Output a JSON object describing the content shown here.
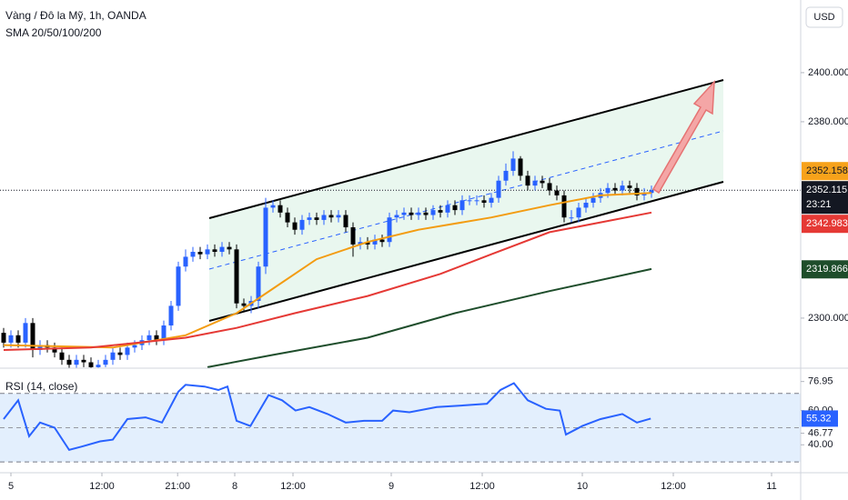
{
  "header": {
    "title": "Vàng / Đô la Mỹ, 1h, OANDA",
    "indicator": "SMA 20/50/100/200",
    "currency": "USD"
  },
  "chart_data": [
    {
      "type": "candlestick",
      "xlim": [
        -0.5,
        109.5
      ],
      "ylim": [
        2279.6,
        2429.6
      ],
      "yticks": [
        {
          "value": 2400,
          "label": "2400.000"
        },
        {
          "value": 2380,
          "label": "2380.000"
        },
        {
          "value": 2300,
          "label": "2300.000"
        }
      ],
      "xticks": [
        {
          "value": 1,
          "label": "5"
        },
        {
          "value": 13.5,
          "label": "12:00"
        },
        {
          "value": 23.9,
          "label": "21:00"
        },
        {
          "value": 31.75,
          "label": "8"
        },
        {
          "value": 39.75,
          "label": "12:00"
        },
        {
          "value": 53.25,
          "label": "9"
        },
        {
          "value": 65.75,
          "label": "12:00"
        },
        {
          "value": 79.5,
          "label": "10"
        },
        {
          "value": 92,
          "label": "12:00"
        },
        {
          "value": 105.5,
          "label": "11"
        }
      ],
      "up_color": "#2962ff",
      "down_color": "#000000",
      "open": [
        2294,
        2290,
        2293,
        2290,
        2298,
        2287,
        2289,
        2288,
        2286,
        2283,
        2281,
        2283,
        2282,
        2280,
        2281,
        2283,
        2286,
        2285,
        2288,
        2289,
        2291,
        2293,
        2291,
        2297,
        2305,
        2321,
        2325,
        2327,
        2326,
        2328,
        2327,
        2329,
        2328,
        2306,
        2305,
        2307,
        2321,
        2345,
        2346,
        2343,
        2339,
        2336,
        2340,
        2341,
        2340,
        2342,
        2341,
        2342,
        2337,
        2330,
        2331,
        2330,
        2332,
        2331,
        2341,
        2342,
        2343,
        2342,
        2343,
        2342,
        2344,
        2343,
        2346,
        2344,
        2348,
        2348,
        2348,
        2347,
        2349,
        2356,
        2360,
        2365,
        2358,
        2354,
        2356,
        2355,
        2352,
        2350,
        2341,
        2341,
        2345,
        2347,
        2349,
        2351,
        2353,
        2352,
        2354,
        2353,
        2350,
        2351
      ],
      "high": [
        2296,
        2295,
        2295,
        2300,
        2300,
        2291,
        2291,
        2290,
        2288,
        2285,
        2285,
        2285,
        2284,
        2283,
        2285,
        2288,
        2288,
        2290,
        2291,
        2293,
        2295,
        2295,
        2299,
        2307,
        2323,
        2328,
        2329,
        2329,
        2330,
        2330,
        2331,
        2331,
        2330,
        2308,
        2309,
        2323,
        2349,
        2348,
        2348,
        2345,
        2341,
        2342,
        2343,
        2343,
        2344,
        2344,
        2344,
        2344,
        2339,
        2333,
        2333,
        2334,
        2334,
        2343,
        2344,
        2345,
        2345,
        2345,
        2345,
        2346,
        2346,
        2348,
        2348,
        2350,
        2350,
        2350,
        2350,
        2351,
        2358,
        2363,
        2368,
        2366,
        2360,
        2358,
        2358,
        2357,
        2354,
        2352,
        2344,
        2347,
        2349,
        2351,
        2353,
        2355,
        2355,
        2356,
        2356,
        2355,
        2353,
        2354
      ],
      "low": [
        2288,
        2288,
        2288,
        2288,
        2284,
        2285,
        2286,
        2284,
        2281,
        2279,
        2279,
        2280,
        2278,
        2279,
        2280,
        2281,
        2283,
        2283,
        2286,
        2287,
        2289,
        2289,
        2289,
        2295,
        2303,
        2319,
        2323,
        2324,
        2324,
        2325,
        2325,
        2326,
        2304,
        2303,
        2302,
        2304,
        2318,
        2343,
        2341,
        2337,
        2334,
        2334,
        2338,
        2338,
        2338,
        2339,
        2339,
        2335,
        2325,
        2328,
        2328,
        2328,
        2329,
        2329,
        2339,
        2340,
        2340,
        2340,
        2340,
        2340,
        2341,
        2341,
        2342,
        2342,
        2346,
        2346,
        2345,
        2345,
        2347,
        2354,
        2358,
        2356,
        2352,
        2352,
        2353,
        2350,
        2348,
        2339,
        2339,
        2339,
        2343,
        2345,
        2347,
        2349,
        2350,
        2350,
        2351,
        2348,
        2348,
        2349
      ],
      "close": [
        2290,
        2293,
        2290,
        2298,
        2287,
        2289,
        2288,
        2286,
        2283,
        2281,
        2283,
        2282,
        2280,
        2281,
        2283,
        2286,
        2285,
        2288,
        2289,
        2291,
        2293,
        2291,
        2297,
        2305,
        2321,
        2325,
        2327,
        2326,
        2328,
        2327,
        2329,
        2328,
        2306,
        2305,
        2307,
        2321,
        2345,
        2346,
        2343,
        2339,
        2336,
        2340,
        2341,
        2340,
        2342,
        2341,
        2342,
        2337,
        2330,
        2331,
        2330,
        2332,
        2331,
        2341,
        2342,
        2343,
        2342,
        2343,
        2342,
        2344,
        2343,
        2346,
        2344,
        2348,
        2348,
        2348,
        2347,
        2349,
        2356,
        2360,
        2365,
        2358,
        2354,
        2356,
        2355,
        2352,
        2350,
        2341,
        2341,
        2345,
        2347,
        2349,
        2351,
        2353,
        2352,
        2354,
        2353,
        2350,
        2351,
        2352.115
      ],
      "series": [
        {
          "color": "#f39c12",
          "x": [
            0,
            15,
            25,
            32,
            37,
            43,
            50,
            57,
            67,
            75,
            82,
            89
          ],
          "values": [
            2289,
            2288,
            2293,
            2302,
            2312,
            2324,
            2331,
            2336,
            2341,
            2346,
            2350,
            2351
          ]
        },
        {
          "color": "#e53935",
          "x": [
            0,
            12,
            25,
            32,
            40,
            50,
            60,
            67,
            75,
            82,
            89
          ],
          "values": [
            2287,
            2288,
            2292,
            2296,
            2302,
            2309,
            2318,
            2326,
            2335,
            2339,
            2343
          ]
        },
        {
          "color": "#1e4d2b",
          "x": [
            28,
            37,
            50,
            62,
            75,
            89
          ],
          "values": [
            2280,
            2285,
            2292,
            2302,
            2311,
            2320
          ]
        }
      ],
      "price_badges": [
        {
          "value": 2352.158,
          "color": "#f7a21b"
        },
        {
          "value": 2342.983,
          "color": "#e53935"
        },
        {
          "value": 2319.866,
          "color": "#1e4d2b"
        }
      ],
      "countdown": "23:21"
    },
    {
      "type": "line",
      "title": "RSI (14, close)",
      "xlim": [
        -0.5,
        109.5
      ],
      "ylim": [
        23.7,
        84.2
      ],
      "yticks": [
        76.95,
        {
          "value": 60,
          "label": "60.00"
        },
        46.77,
        {
          "value": 40,
          "label": "40.00"
        }
      ],
      "bands": [
        70,
        30
      ],
      "midline": 50,
      "series": [
        {
          "color": "#2962ff",
          "x": [
            0,
            2,
            3.5,
            5,
            7,
            9,
            10.75,
            13.25,
            15,
            17,
            19.5,
            21.75,
            24,
            25,
            27.6,
            29.5,
            30.75,
            32,
            33.9,
            36.4,
            38.25,
            40.1,
            42,
            44.5,
            47,
            49.5,
            52,
            53.5,
            55.75,
            59.5,
            63.25,
            66.4,
            68.25,
            70.1,
            72,
            74.5,
            76.4,
            77.25,
            79.5,
            82,
            85,
            87,
            88.9
          ],
          "values": [
            55,
            66,
            45,
            53,
            50,
            37,
            39,
            42,
            43,
            55,
            56,
            53,
            71,
            75,
            74,
            72,
            74,
            54,
            51,
            69,
            66,
            60,
            62,
            58,
            53,
            54,
            54,
            60,
            59,
            62,
            63,
            64,
            72,
            76,
            66,
            61,
            60,
            46,
            51,
            55,
            58,
            53,
            55.32
          ]
        }
      ]
    }
  ]
}
